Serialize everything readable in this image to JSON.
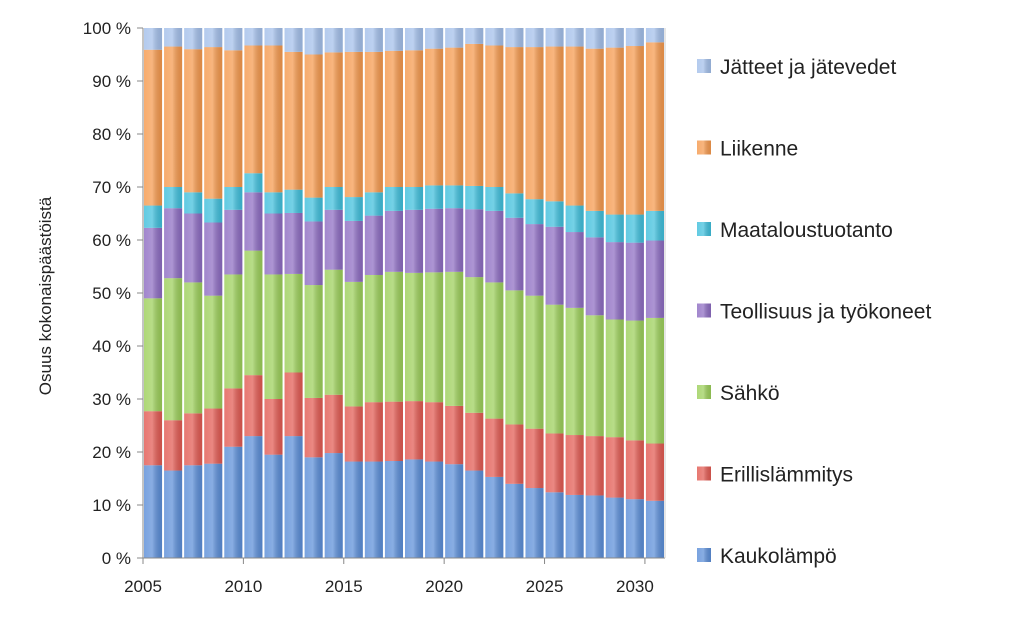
{
  "chart_data": {
    "type": "bar",
    "stacked": true,
    "normalized_percent": true,
    "title": "",
    "xlabel": "",
    "ylabel": "Osuus kokonaispäästöistä",
    "ylim": [
      0,
      100
    ],
    "y_ticks": [
      "0 %",
      "10 %",
      "20 %",
      "30 %",
      "40 %",
      "50 %",
      "60 %",
      "70 %",
      "80 %",
      "90 %",
      "100 %"
    ],
    "x_tick_labels": [
      "2005",
      "2010",
      "2015",
      "2020",
      "2025",
      "2030"
    ],
    "x_tick_years": [
      2005,
      2010,
      2015,
      2020,
      2025,
      2030
    ],
    "grid": false,
    "legend_placement": "right",
    "categories": [
      2005,
      2006,
      2007,
      2008,
      2009,
      2010,
      2011,
      2012,
      2013,
      2014,
      2015,
      2016,
      2017,
      2018,
      2019,
      2020,
      2021,
      2022,
      2023,
      2024,
      2025,
      2026,
      2027,
      2028,
      2029,
      2030
    ],
    "series": [
      {
        "name": "Kaukolämpö",
        "color": "#5b8ed8",
        "values": [
          17.5,
          16.5,
          17.5,
          17.8,
          21.0,
          23.0,
          19.5,
          23.0,
          19.0,
          19.8,
          18.2,
          18.2,
          18.3,
          18.6,
          18.2,
          17.7,
          16.5,
          15.3,
          14.0,
          13.2,
          12.4,
          11.9,
          11.8,
          11.4,
          11.1,
          10.8
        ]
      },
      {
        "name": "Erillislämmitys",
        "color": "#e25a52",
        "values": [
          10.2,
          9.5,
          9.8,
          10.4,
          11.0,
          11.5,
          10.5,
          12.0,
          11.2,
          11.0,
          10.4,
          11.2,
          11.2,
          11.0,
          11.2,
          11.0,
          10.9,
          11.0,
          11.2,
          11.2,
          11.1,
          11.3,
          11.2,
          11.4,
          11.1,
          10.8
        ]
      },
      {
        "name": "Sähkö",
        "color": "#9ccf5a",
        "values": [
          21.3,
          26.8,
          24.7,
          21.3,
          21.5,
          23.5,
          23.5,
          18.6,
          21.3,
          23.6,
          23.5,
          24.0,
          24.5,
          24.2,
          24.5,
          25.3,
          25.6,
          25.7,
          25.3,
          25.1,
          24.3,
          24.0,
          22.8,
          22.2,
          22.6,
          23.7
        ]
      },
      {
        "name": "Teollisuus ja työkoneet",
        "color": "#8d6cc2",
        "values": [
          13.3,
          13.2,
          13.0,
          13.8,
          12.2,
          11.0,
          11.5,
          11.5,
          12.0,
          11.3,
          11.5,
          11.2,
          11.5,
          11.9,
          12.0,
          12.0,
          12.8,
          13.5,
          13.7,
          13.5,
          14.7,
          14.3,
          14.7,
          14.6,
          14.7,
          14.6
        ]
      },
      {
        "name": "Maataloustuotanto",
        "color": "#3fbfdc",
        "values": [
          4.2,
          4.0,
          4.0,
          4.5,
          4.3,
          3.6,
          4.0,
          4.4,
          4.5,
          4.3,
          4.5,
          4.4,
          4.5,
          4.3,
          4.4,
          4.3,
          4.4,
          4.5,
          4.6,
          4.7,
          4.8,
          5.0,
          5.0,
          5.2,
          5.3,
          5.6
        ]
      },
      {
        "name": "Liikenne",
        "color": "#f5994d",
        "values": [
          29.4,
          26.5,
          27.0,
          28.6,
          25.8,
          24.1,
          27.7,
          26.0,
          27.0,
          25.4,
          27.4,
          26.5,
          25.7,
          25.8,
          25.8,
          26.0,
          26.8,
          26.7,
          27.6,
          28.7,
          29.2,
          30.0,
          30.6,
          31.5,
          31.8,
          31.8
        ]
      },
      {
        "name": "Jätteet ja jätevedet",
        "color": "#a3bfea",
        "values": [
          4.1,
          3.5,
          4.0,
          3.6,
          4.2,
          3.3,
          3.3,
          4.5,
          5.0,
          4.6,
          4.5,
          4.5,
          4.3,
          4.2,
          3.9,
          3.7,
          3.0,
          3.3,
          3.6,
          3.6,
          3.5,
          3.5,
          3.9,
          3.7,
          3.4,
          2.7
        ]
      }
    ]
  }
}
